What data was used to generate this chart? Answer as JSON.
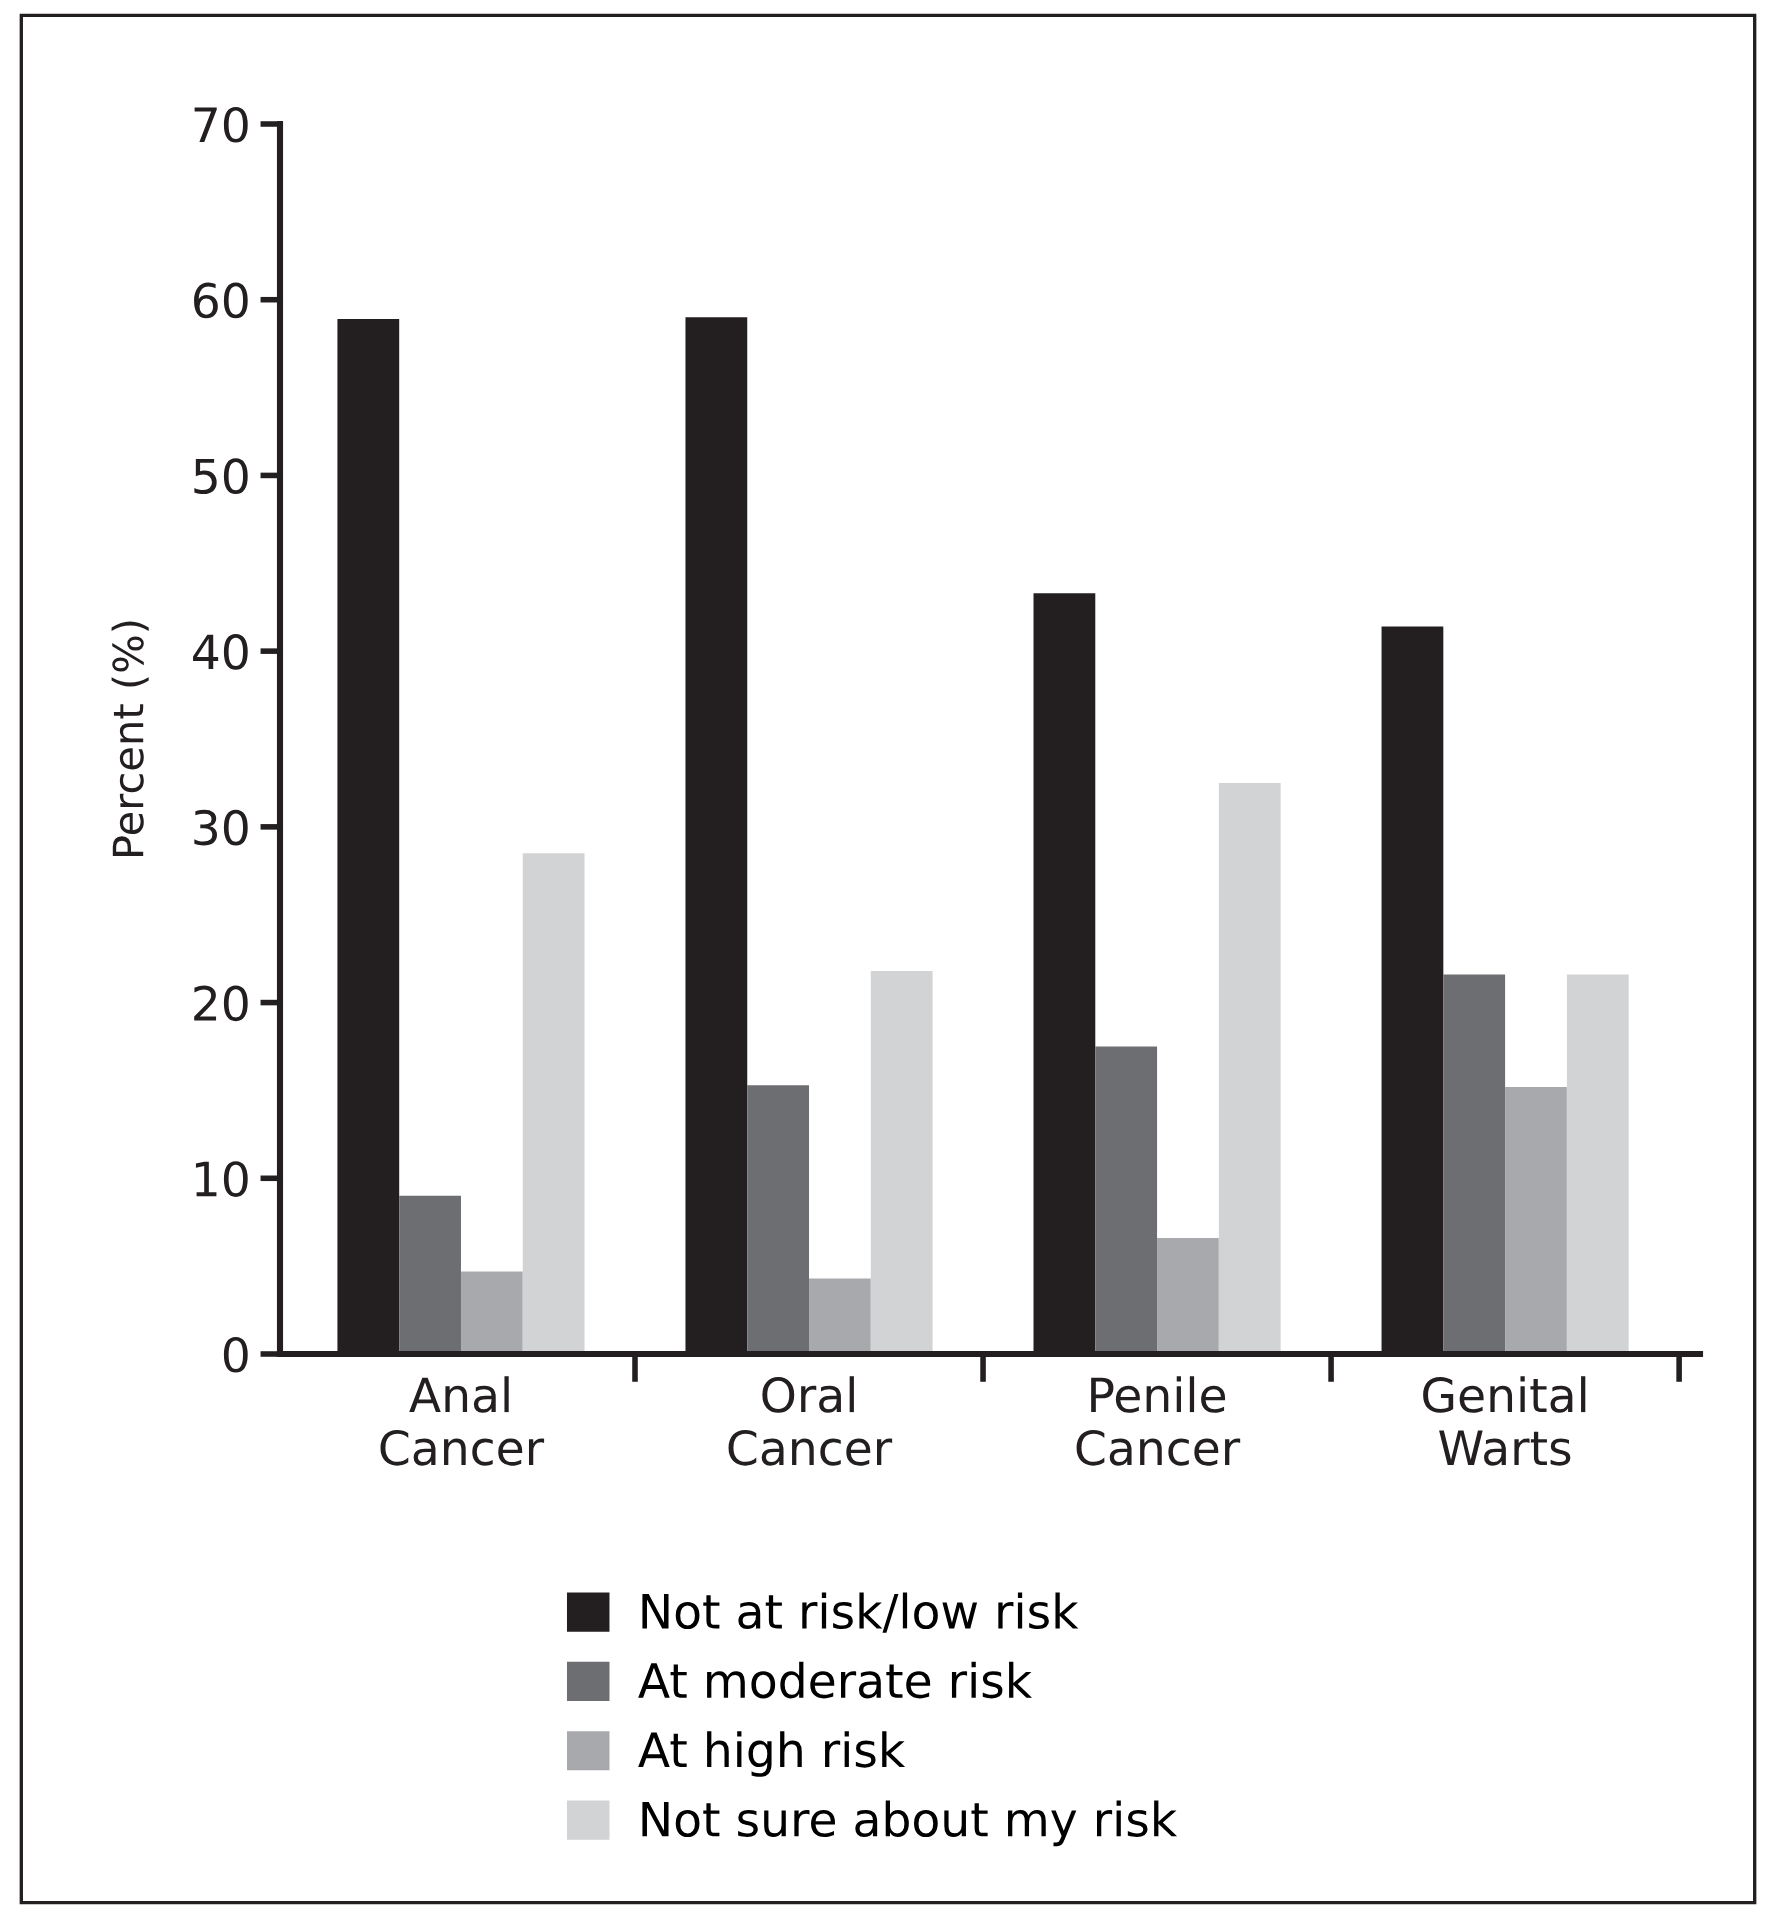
{
  "chart_data": {
    "type": "bar",
    "ylabel": "Percent (%)",
    "categories": [
      "Anal\nCancer",
      "Oral\nCancer",
      "Penile\nCancer",
      "Genital\nWarts"
    ],
    "series": [
      {
        "name": "Not at risk/low risk",
        "color": "#231f20",
        "values": [
          58.9,
          59.0,
          43.3,
          41.4
        ]
      },
      {
        "name": "At moderate risk",
        "color": "#6d6e71",
        "values": [
          9.0,
          15.3,
          17.5,
          21.6
        ]
      },
      {
        "name": "At high risk",
        "color": "#a7a9ac",
        "values": [
          4.7,
          4.3,
          6.6,
          15.2
        ]
      },
      {
        "name": "Not sure about my risk",
        "color": "#d1d3d4",
        "values": [
          28.5,
          21.8,
          32.5,
          21.6
        ]
      }
    ],
    "ylim": [
      0,
      70
    ],
    "yticks": [
      0,
      10,
      20,
      30,
      40,
      50,
      60,
      70
    ],
    "grid": false,
    "legend": "bottom"
  }
}
